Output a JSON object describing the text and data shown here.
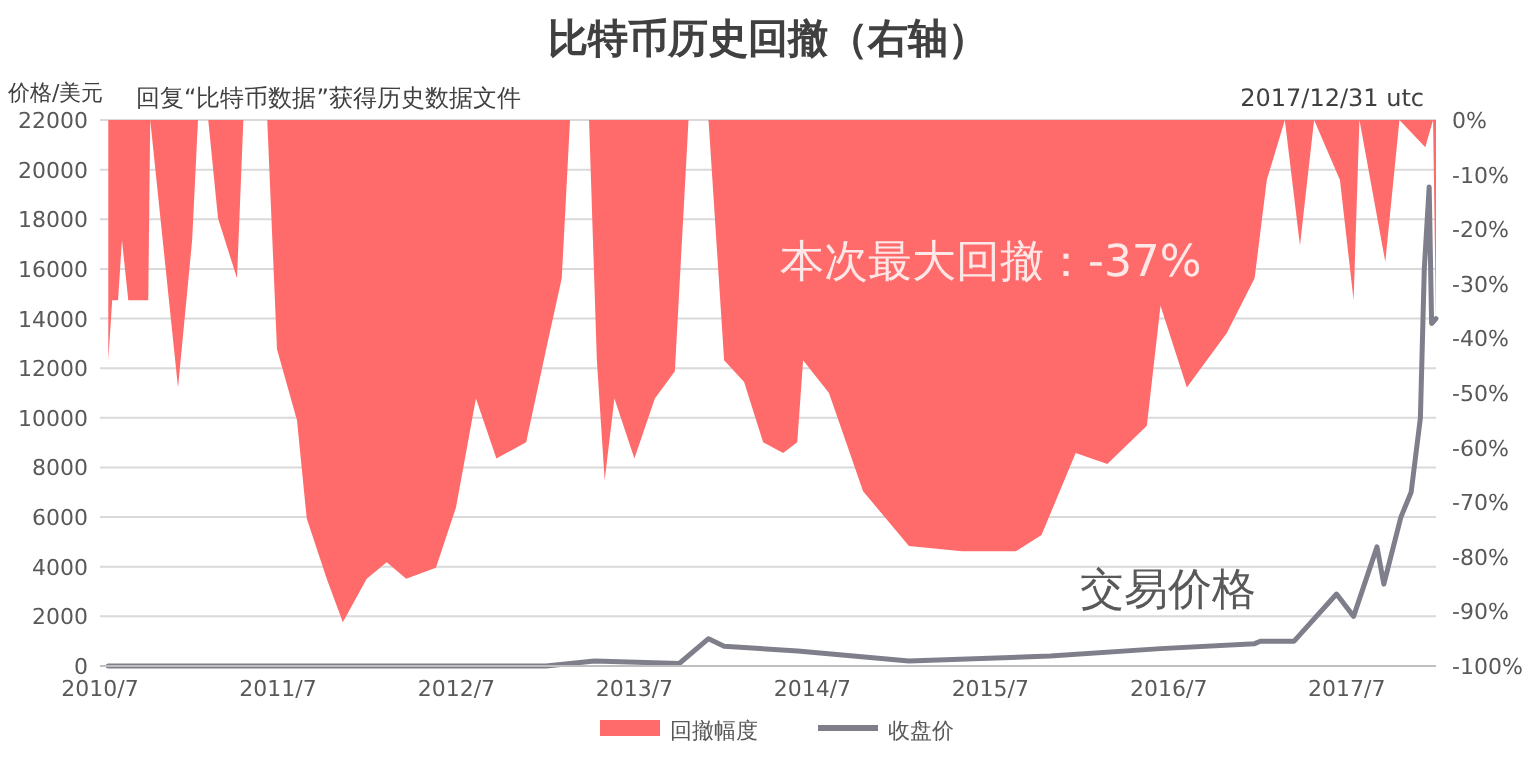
{
  "chart_data": {
    "type": "area",
    "title": "比特币历史回撤（右轴）",
    "ylabel": "价格/美元",
    "annotations": [
      "回复“比特币数据”获得历史数据文件",
      "2017/12/31 utc",
      "本次最大回撤：-37%",
      "交易价格"
    ],
    "xlim": [
      "2010-07-01",
      "2017-12-31"
    ],
    "xticks": [
      {
        "value": "2010-07",
        "label": "2010/7"
      },
      {
        "value": "2011-07",
        "label": "2011/7"
      },
      {
        "value": "2012-07",
        "label": "2012/7"
      },
      {
        "value": "2013-07",
        "label": "2013/7"
      },
      {
        "value": "2014-07",
        "label": "2014/7"
      },
      {
        "value": "2015-07",
        "label": "2015/7"
      },
      {
        "value": "2016-07",
        "label": "2016/7"
      },
      {
        "value": "2017-07",
        "label": "2017/7"
      }
    ],
    "ylim": [
      0,
      22000
    ],
    "yticks": [
      0,
      2000,
      4000,
      6000,
      8000,
      10000,
      12000,
      14000,
      16000,
      18000,
      20000,
      22000
    ],
    "y2lim": [
      -100,
      0
    ],
    "y2ticks": [
      {
        "value": 0,
        "label": "0%"
      },
      {
        "value": -10,
        "label": "-10%"
      },
      {
        "value": -20,
        "label": "-20%"
      },
      {
        "value": -30,
        "label": "-30%"
      },
      {
        "value": -40,
        "label": "-40%"
      },
      {
        "value": -50,
        "label": "-50%"
      },
      {
        "value": -60,
        "label": "-60%"
      },
      {
        "value": -70,
        "label": "-70%"
      },
      {
        "value": -80,
        "label": "-80%"
      },
      {
        "value": -90,
        "label": "-90%"
      },
      {
        "value": -100,
        "label": "-100%"
      }
    ],
    "grid": "y",
    "legend": "bottom",
    "series": [
      {
        "name": "回撤幅度",
        "axis": "y2",
        "color": "#ff6b6b",
        "x": [
          "2010-07-18",
          "2010-07-26",
          "2010-08-07",
          "2010-08-15",
          "2010-08-28",
          "2010-10-08",
          "2010-10-12",
          "2010-12-08",
          "2011-01-06",
          "2011-01-18",
          "2011-02-08",
          "2011-02-28",
          "2011-04-08",
          "2011-04-21",
          "2011-06-09",
          "2011-06-29",
          "2011-08-09",
          "2011-08-29",
          "2011-10-09",
          "2011-11-11",
          "2011-12-30",
          "2012-02-09",
          "2012-03-20",
          "2012-05-20",
          "2012-06-30",
          "2012-08-10",
          "2012-09-21",
          "2012-11-21",
          "2013-01-01",
          "2013-02-02",
          "2013-02-19",
          "2013-03-30",
          "2013-04-15",
          "2013-05-01",
          "2013-05-21",
          "2013-07-01",
          "2013-08-12",
          "2013-09-22",
          "2013-10-20",
          "2013-11-30",
          "2014-01-01",
          "2014-02-11",
          "2014-03-22",
          "2014-05-02",
          "2014-05-31",
          "2014-06-12",
          "2014-08-04",
          "2014-10-13",
          "2015-01-15",
          "2015-05-04",
          "2015-08-22",
          "2015-10-14",
          "2015-12-23",
          "2016-02-26",
          "2016-05-17",
          "2016-06-14",
          "2016-08-07",
          "2016-10-28",
          "2016-12-24",
          "2017-01-18",
          "2017-02-24",
          "2017-03-27",
          "2017-04-25",
          "2017-06-17",
          "2017-07-15",
          "2017-07-27",
          "2017-09-18",
          "2017-10-17",
          "2017-12-09",
          "2017-12-25",
          "2017-12-31"
        ],
        "values": [
          -44,
          -33,
          -33,
          -22,
          -33,
          -33,
          0,
          -49,
          -22,
          0,
          0,
          -18,
          -29,
          0,
          0,
          -42,
          -55,
          -73,
          -84,
          -92,
          -84,
          -81,
          -84,
          -82,
          -71,
          -51,
          -62,
          -59,
          -42,
          -29,
          0,
          0,
          -44,
          -66,
          -51,
          -62,
          -51,
          -46,
          0,
          0,
          -44,
          -48,
          -59,
          -61,
          -59,
          -44,
          -50,
          -68,
          -78,
          -79,
          -79,
          -76,
          -61,
          -63,
          -56,
          -34,
          -49,
          -39,
          -29,
          -11,
          0,
          -23,
          0,
          -11,
          -33,
          0,
          -26,
          0,
          -5,
          0,
          -37
        ]
      },
      {
        "name": "收盘价",
        "type": "line",
        "axis": "y",
        "color": "#7f7f8c",
        "x": [
          "2010-07-18",
          "2011-06-09",
          "2013-01-01",
          "2013-04-10",
          "2013-10-01",
          "2013-11-30",
          "2014-01-01",
          "2014-06-01",
          "2015-01-15",
          "2015-11-01",
          "2016-06-14",
          "2016-12-24",
          "2017-01-05",
          "2017-03-15",
          "2017-06-10",
          "2017-07-15",
          "2017-09-01",
          "2017-09-15",
          "2017-10-20",
          "2017-11-10",
          "2017-11-29",
          "2017-12-07",
          "2017-12-17",
          "2017-12-22",
          "2017-12-31"
        ],
        "values": [
          0,
          0,
          0,
          200,
          100,
          1100,
          800,
          600,
          200,
          400,
          700,
          900,
          1000,
          1000,
          2900,
          2000,
          4800,
          3300,
          6000,
          7000,
          10000,
          16000,
          19300,
          13800,
          14000
        ]
      }
    ]
  }
}
